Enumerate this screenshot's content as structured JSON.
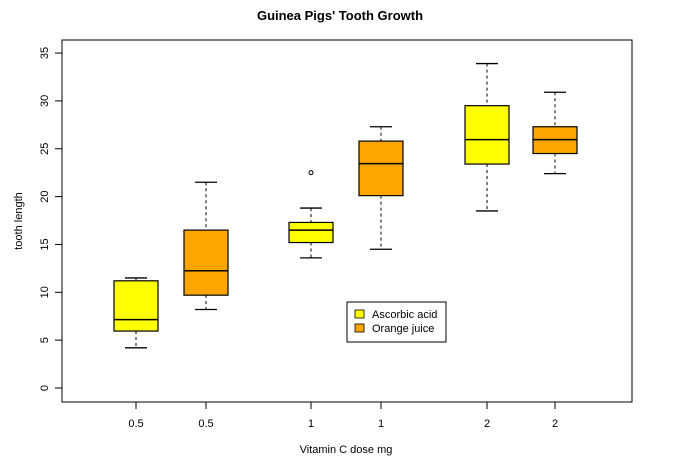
{
  "chart_data": {
    "type": "boxplot",
    "title": "Guinea Pigs' Tooth Growth",
    "xlabel": "Vitamin C dose mg",
    "ylabel": "tooth length",
    "ylim": [
      -1.5,
      36.5
    ],
    "yticks": [
      0,
      5,
      10,
      15,
      20,
      25,
      30,
      35
    ],
    "categories": [
      "0.5",
      "0.5",
      "1",
      "1",
      "2",
      "2"
    ],
    "legend": {
      "position": "center",
      "entries": [
        {
          "label": "Ascorbic acid",
          "color": "#ffff00"
        },
        {
          "label": "Orange juice",
          "color": "#ffa500"
        }
      ]
    },
    "boxes": [
      {
        "label": "0.5",
        "group": "Ascorbic acid",
        "color": "#ffff00",
        "min": 4.2,
        "q1": 5.95,
        "median": 7.15,
        "q3": 11.2,
        "max": 11.5,
        "outliers": []
      },
      {
        "label": "0.5",
        "group": "Orange juice",
        "color": "#ffa500",
        "min": 8.2,
        "q1": 9.7,
        "median": 12.25,
        "q3": 16.5,
        "max": 21.5,
        "outliers": []
      },
      {
        "label": "1",
        "group": "Ascorbic acid",
        "color": "#ffff00",
        "min": 13.6,
        "q1": 15.2,
        "median": 16.5,
        "q3": 17.3,
        "max": 18.8,
        "outliers": [
          22.5
        ]
      },
      {
        "label": "1",
        "group": "Orange juice",
        "color": "#ffa500",
        "min": 14.5,
        "q1": 20.1,
        "median": 23.45,
        "q3": 25.8,
        "max": 27.3,
        "outliers": []
      },
      {
        "label": "2",
        "group": "Ascorbic acid",
        "color": "#ffff00",
        "min": 18.5,
        "q1": 23.4,
        "median": 25.95,
        "q3": 29.5,
        "max": 33.9,
        "outliers": []
      },
      {
        "label": "2",
        "group": "Orange juice",
        "color": "#ffa500",
        "min": 22.4,
        "q1": 24.5,
        "median": 25.95,
        "q3": 27.3,
        "max": 30.9,
        "outliers": []
      }
    ]
  }
}
